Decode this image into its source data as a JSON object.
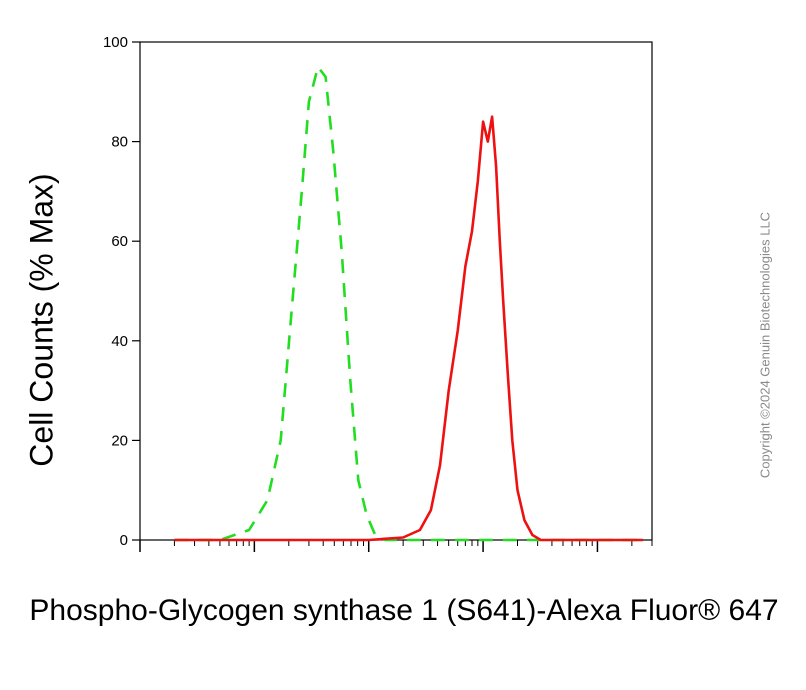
{
  "chart_data": {
    "type": "line",
    "title": "",
    "ylabel": "Cell Counts (% Max)",
    "xlabel": "Phospho-Glycogen synthase 1 (S641)-Alexa Fluor® 647",
    "x_scale": "log",
    "xlim": [
      0.1,
      3000
    ],
    "ylim": [
      0,
      100
    ],
    "y_ticks": [
      "0",
      "20",
      "40",
      "60",
      "80",
      "100"
    ],
    "grid": false,
    "series": [
      {
        "color": "#22dd22",
        "style": "dashed",
        "x": [
          0.2,
          0.5,
          0.9,
          1.3,
          1.7,
          2.1,
          2.6,
          3.0,
          3.6,
          4.2,
          4.9,
          5.8,
          6.9,
          8.1,
          9.6,
          11.4,
          14.0,
          18.0,
          30,
          60,
          100,
          200,
          400,
          800,
          1500,
          2500
        ],
        "y": [
          0,
          0,
          2,
          8,
          20,
          45,
          70,
          88,
          95,
          93,
          78,
          58,
          32,
          12,
          5,
          1,
          0,
          0,
          0,
          0,
          0,
          0,
          0,
          0,
          0,
          0
        ]
      },
      {
        "color": "#ee1111",
        "style": "solid",
        "x": [
          0.2,
          10,
          20,
          28,
          35,
          42,
          50,
          60,
          70,
          80,
          90,
          100,
          110,
          120,
          130,
          140,
          150,
          165,
          180,
          200,
          230,
          270,
          320,
          400,
          600,
          1000,
          2500
        ],
        "y": [
          0,
          0,
          0.5,
          2,
          6,
          15,
          30,
          42,
          55,
          62,
          72,
          84,
          80,
          85,
          75,
          60,
          48,
          33,
          20,
          10,
          4,
          1,
          0,
          0,
          0,
          0,
          0
        ]
      }
    ]
  },
  "watermark": "Copyright ©2024 Genuin Biotechnologies LLC"
}
